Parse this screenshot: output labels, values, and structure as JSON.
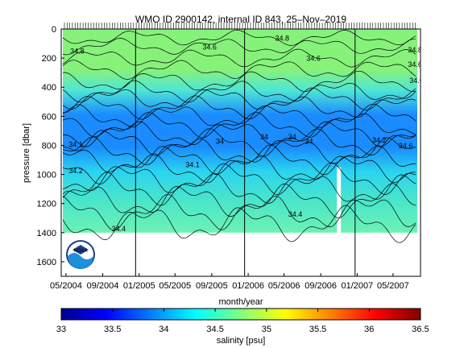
{
  "chart_data": {
    "type": "heatmap",
    "title": "WMO ID 2900142, internal ID 843, 25–Nov–2019",
    "xlabel": "month/year",
    "ylabel": "pressure [dbar]",
    "x_ticks": [
      "05/2004",
      "09/2004",
      "01/2005",
      "05/2005",
      "09/2005",
      "01/2006",
      "05/2006",
      "09/2006",
      "01/2007",
      "05/2007"
    ],
    "y_ticks": [
      "0",
      "200",
      "400",
      "600",
      "800",
      "1000",
      "1200",
      "1400",
      "1600"
    ],
    "ylim": [
      1700,
      0
    ],
    "xlim": [
      "2004-04-15",
      "2007-08-01"
    ],
    "bands": [
      {
        "pmin": 0,
        "pmax": 450,
        "salinity": 34.8,
        "color": "#86f27a"
      },
      {
        "pmin": 450,
        "pmax": 600,
        "salinity": 34.3,
        "color": "#30d6ff"
      },
      {
        "pmin": 600,
        "pmax": 850,
        "salinity": 34.1,
        "color": "#1a8cff"
      },
      {
        "pmin": 850,
        "pmax": 1100,
        "salinity": 34.4,
        "color": "#2ad4f0"
      },
      {
        "pmin": 1100,
        "pmax": 1400,
        "salinity": 34.6,
        "color": "#6cf2b4"
      }
    ],
    "vertical_lines": [
      "2004-12-20",
      "2005-12-20",
      "2006-12-25"
    ],
    "contour_labels": [
      {
        "text": "34.8",
        "x": "2004-05-15",
        "p": 170
      },
      {
        "text": "34.6",
        "x": "2005-08-01",
        "p": 140
      },
      {
        "text": "34.8",
        "x": "2006-04-01",
        "p": 80
      },
      {
        "text": "34.6",
        "x": "2006-07-15",
        "p": 220
      },
      {
        "text": "34.8",
        "x": "2007-06-20",
        "p": 160
      },
      {
        "text": "34.6",
        "x": "2007-06-20",
        "p": 260
      },
      {
        "text": "34.6",
        "x": "2007-06-25",
        "p": 370
      },
      {
        "text": "34",
        "x": "2005-09-15",
        "p": 790
      },
      {
        "text": "34.1",
        "x": "2004-05-10",
        "p": 810
      },
      {
        "text": "34",
        "x": "2006-02-10",
        "p": 760
      },
      {
        "text": "34",
        "x": "2006-05-15",
        "p": 760
      },
      {
        "text": "34",
        "x": "2006-07-10",
        "p": 790
      },
      {
        "text": "34.2",
        "x": "2007-02-20",
        "p": 780
      },
      {
        "text": "34.6",
        "x": "2007-05-20",
        "p": 820
      },
      {
        "text": "34.2",
        "x": "2004-05-10",
        "p": 990
      },
      {
        "text": "34.1",
        "x": "2005-06-05",
        "p": 950
      },
      {
        "text": "34.4",
        "x": "2006-05-15",
        "p": 1290
      },
      {
        "text": "34.4",
        "x": "2004-10-01",
        "p": 1390
      }
    ],
    "colorbar": {
      "label": "salinity [psu]",
      "range": [
        33,
        36.5
      ],
      "ticks": [
        "33",
        "33.5",
        "34",
        "34.5",
        "35",
        "35.5",
        "36",
        "36.5"
      ]
    }
  },
  "logo": {
    "name": "noaa-logo",
    "text": "NOAA"
  }
}
